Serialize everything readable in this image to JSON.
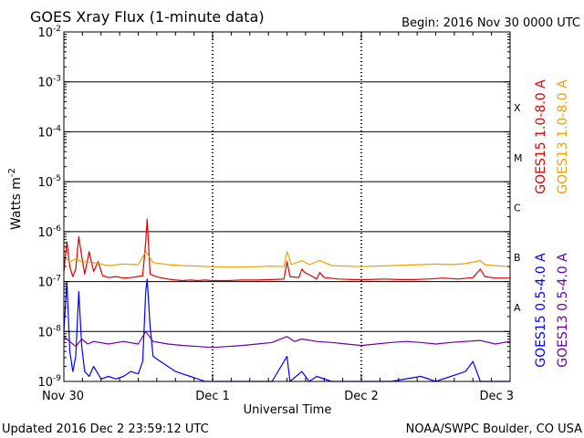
{
  "title": "GOES Xray Flux (1-minute data)",
  "begin_label": "Begin:  2016 Nov 30 0000 UTC",
  "footer_left": "Updated 2016 Dec  2 23:59:12 UTC",
  "footer_right": "NOAA/SWPC Boulder, CO USA",
  "colors": {
    "goes15_long": "#e00000",
    "goes13_long": "#f0a000",
    "goes15_short": "#0000ff",
    "goes13_short": "#6a00a8"
  },
  "chart_data": {
    "type": "line",
    "xlabel": "Universal Time",
    "ylabel": "Watts m",
    "ylabel_superscript": "-2",
    "y_scale": "log",
    "ylim": [
      1e-09,
      0.01
    ],
    "x_range_days": [
      0,
      3
    ],
    "x_ticks": [
      {
        "day": 0,
        "label": "Nov 30"
      },
      {
        "day": 1,
        "label": "Dec 1"
      },
      {
        "day": 2,
        "label": "Dec 2"
      },
      {
        "day": 3,
        "label": "Dec 3"
      }
    ],
    "y_ticks": [
      {
        "exp": -9
      },
      {
        "exp": -8
      },
      {
        "exp": -7
      },
      {
        "exp": -6
      },
      {
        "exp": -5
      },
      {
        "exp": -4
      },
      {
        "exp": -3
      },
      {
        "exp": -2
      }
    ],
    "flare_classes": [
      {
        "label": "X",
        "exp": -4
      },
      {
        "label": "M",
        "exp": -5
      },
      {
        "label": "C",
        "exp": -6
      },
      {
        "label": "B",
        "exp": -7
      },
      {
        "label": "A",
        "exp": -8
      }
    ],
    "series": [
      {
        "name": "GOES15 1.0-8.0 A",
        "color_key": "goes15_long",
        "points": [
          [
            0.0,
            -6.8
          ],
          [
            0.02,
            -6.2
          ],
          [
            0.04,
            -6.7
          ],
          [
            0.06,
            -6.9
          ],
          [
            0.08,
            -6.75
          ],
          [
            0.1,
            -6.1
          ],
          [
            0.12,
            -6.5
          ],
          [
            0.14,
            -6.85
          ],
          [
            0.17,
            -6.4
          ],
          [
            0.2,
            -6.8
          ],
          [
            0.23,
            -6.6
          ],
          [
            0.26,
            -6.88
          ],
          [
            0.3,
            -6.92
          ],
          [
            0.35,
            -6.9
          ],
          [
            0.4,
            -6.93
          ],
          [
            0.45,
            -6.92
          ],
          [
            0.5,
            -6.9
          ],
          [
            0.53,
            -6.88
          ],
          [
            0.55,
            -6.2
          ],
          [
            0.56,
            -5.75
          ],
          [
            0.57,
            -6.3
          ],
          [
            0.58,
            -6.85
          ],
          [
            0.62,
            -6.9
          ],
          [
            0.66,
            -6.93
          ],
          [
            0.7,
            -6.95
          ],
          [
            0.75,
            -6.97
          ],
          [
            0.8,
            -6.98
          ],
          [
            0.85,
            -6.97
          ],
          [
            0.9,
            -6.98
          ],
          [
            0.95,
            -6.97
          ],
          [
            1.0,
            -6.98
          ],
          [
            1.1,
            -6.98
          ],
          [
            1.2,
            -6.97
          ],
          [
            1.3,
            -6.97
          ],
          [
            1.4,
            -6.96
          ],
          [
            1.48,
            -6.95
          ],
          [
            1.5,
            -6.6
          ],
          [
            1.52,
            -6.9
          ],
          [
            1.58,
            -6.92
          ],
          [
            1.6,
            -6.75
          ],
          [
            1.62,
            -6.82
          ],
          [
            1.66,
            -6.88
          ],
          [
            1.7,
            -6.95
          ],
          [
            1.72,
            -6.82
          ],
          [
            1.75,
            -6.92
          ],
          [
            1.85,
            -6.95
          ],
          [
            1.95,
            -6.96
          ],
          [
            2.05,
            -6.96
          ],
          [
            2.15,
            -6.95
          ],
          [
            2.25,
            -6.96
          ],
          [
            2.35,
            -6.96
          ],
          [
            2.45,
            -6.95
          ],
          [
            2.55,
            -6.93
          ],
          [
            2.65,
            -6.95
          ],
          [
            2.75,
            -6.92
          ],
          [
            2.8,
            -6.75
          ],
          [
            2.83,
            -6.9
          ],
          [
            2.9,
            -6.93
          ],
          [
            3.0,
            -6.93
          ]
        ]
      },
      {
        "name": "GOES13 1.0-8.0 A",
        "color_key": "goes13_long",
        "points": [
          [
            0.0,
            -6.5
          ],
          [
            0.04,
            -6.6
          ],
          [
            0.08,
            -6.55
          ],
          [
            0.12,
            -6.6
          ],
          [
            0.2,
            -6.62
          ],
          [
            0.3,
            -6.68
          ],
          [
            0.4,
            -6.65
          ],
          [
            0.5,
            -6.66
          ],
          [
            0.55,
            -6.4
          ],
          [
            0.6,
            -6.62
          ],
          [
            0.7,
            -6.66
          ],
          [
            0.8,
            -6.68
          ],
          [
            0.9,
            -6.69
          ],
          [
            1.0,
            -6.7
          ],
          [
            1.1,
            -6.71
          ],
          [
            1.2,
            -6.71
          ],
          [
            1.3,
            -6.7
          ],
          [
            1.4,
            -6.69
          ],
          [
            1.48,
            -6.7
          ],
          [
            1.5,
            -6.4
          ],
          [
            1.53,
            -6.66
          ],
          [
            1.6,
            -6.58
          ],
          [
            1.65,
            -6.66
          ],
          [
            1.72,
            -6.58
          ],
          [
            1.8,
            -6.68
          ],
          [
            1.9,
            -6.69
          ],
          [
            2.0,
            -6.7
          ],
          [
            2.1,
            -6.69
          ],
          [
            2.2,
            -6.68
          ],
          [
            2.3,
            -6.67
          ],
          [
            2.4,
            -6.66
          ],
          [
            2.5,
            -6.65
          ],
          [
            2.6,
            -6.66
          ],
          [
            2.7,
            -6.64
          ],
          [
            2.8,
            -6.58
          ],
          [
            2.83,
            -6.66
          ],
          [
            2.9,
            -6.68
          ],
          [
            3.0,
            -6.7
          ]
        ]
      },
      {
        "name": "GOES15 0.5-4.0 A",
        "color_key": "goes15_short",
        "points": [
          [
            0.0,
            -8.0
          ],
          [
            0.02,
            -7.0
          ],
          [
            0.04,
            -8.4
          ],
          [
            0.06,
            -8.8
          ],
          [
            0.08,
            -8.5
          ],
          [
            0.1,
            -7.2
          ],
          [
            0.12,
            -8.3
          ],
          [
            0.14,
            -8.8
          ],
          [
            0.17,
            -8.9
          ],
          [
            0.2,
            -8.7
          ],
          [
            0.25,
            -8.95
          ],
          [
            0.3,
            -8.9
          ],
          [
            0.35,
            -8.95
          ],
          [
            0.4,
            -8.9
          ],
          [
            0.45,
            -8.8
          ],
          [
            0.5,
            -8.85
          ],
          [
            0.53,
            -8.6
          ],
          [
            0.55,
            -7.2
          ],
          [
            0.56,
            -6.95
          ],
          [
            0.58,
            -7.9
          ],
          [
            0.6,
            -8.5
          ],
          [
            0.65,
            -8.6
          ],
          [
            0.7,
            -8.7
          ],
          [
            0.75,
            -8.8
          ],
          [
            0.8,
            -8.85
          ],
          [
            0.85,
            -8.9
          ],
          [
            0.9,
            -8.95
          ],
          [
            0.95,
            -9.0
          ],
          [
            1.0,
            -9.0
          ],
          [
            1.2,
            -9.0
          ],
          [
            1.4,
            -9.0
          ],
          [
            1.5,
            -8.5
          ],
          [
            1.52,
            -9.0
          ],
          [
            1.6,
            -8.8
          ],
          [
            1.65,
            -9.0
          ],
          [
            1.7,
            -8.9
          ],
          [
            1.8,
            -9.0
          ],
          [
            2.0,
            -9.0
          ],
          [
            2.2,
            -9.0
          ],
          [
            2.4,
            -8.9
          ],
          [
            2.5,
            -9.0
          ],
          [
            2.7,
            -8.8
          ],
          [
            2.75,
            -8.6
          ],
          [
            2.8,
            -9.0
          ],
          [
            2.9,
            -9.0
          ],
          [
            3.0,
            -9.0
          ]
        ]
      },
      {
        "name": "GOES13 0.5-4.0 A",
        "color_key": "goes13_short",
        "points": [
          [
            0.0,
            -8.1
          ],
          [
            0.04,
            -8.2
          ],
          [
            0.08,
            -8.3
          ],
          [
            0.12,
            -8.15
          ],
          [
            0.16,
            -8.25
          ],
          [
            0.2,
            -8.2
          ],
          [
            0.3,
            -8.25
          ],
          [
            0.4,
            -8.2
          ],
          [
            0.5,
            -8.25
          ],
          [
            0.55,
            -8.0
          ],
          [
            0.6,
            -8.2
          ],
          [
            0.7,
            -8.25
          ],
          [
            0.8,
            -8.28
          ],
          [
            0.9,
            -8.3
          ],
          [
            1.0,
            -8.32
          ],
          [
            1.1,
            -8.3
          ],
          [
            1.2,
            -8.28
          ],
          [
            1.3,
            -8.25
          ],
          [
            1.4,
            -8.22
          ],
          [
            1.5,
            -8.1
          ],
          [
            1.55,
            -8.2
          ],
          [
            1.6,
            -8.15
          ],
          [
            1.7,
            -8.2
          ],
          [
            1.8,
            -8.22
          ],
          [
            1.9,
            -8.25
          ],
          [
            2.0,
            -8.28
          ],
          [
            2.1,
            -8.25
          ],
          [
            2.2,
            -8.22
          ],
          [
            2.3,
            -8.2
          ],
          [
            2.4,
            -8.22
          ],
          [
            2.5,
            -8.25
          ],
          [
            2.6,
            -8.22
          ],
          [
            2.7,
            -8.2
          ],
          [
            2.8,
            -8.18
          ],
          [
            2.9,
            -8.25
          ],
          [
            3.0,
            -8.2
          ]
        ]
      }
    ]
  }
}
